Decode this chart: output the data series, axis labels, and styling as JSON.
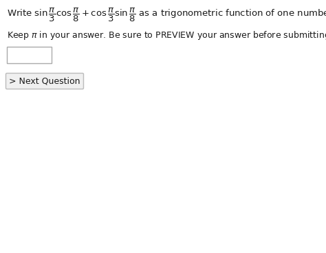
{
  "background_color": "#ffffff",
  "text_color": "#1a1a1a",
  "button_bg": "#f0f0f0",
  "button_border": "#bbbbbb",
  "input_box_color": "#ffffff",
  "input_box_border": "#aaaaaa",
  "line1_math": "Write $\\sin\\dfrac{\\pi}{3}\\cos\\dfrac{\\pi}{8} + \\cos\\dfrac{\\pi}{3}\\sin\\dfrac{\\pi}{8}$ as a trigonometric function of one number.",
  "line2_text": "Keep $\\pi$ in your answer. Be sure to PREVIEW your answer before submitting!",
  "button_label": "> Next Question",
  "fontsize_line1": 9.5,
  "fontsize_line2": 9.0,
  "fontsize_button": 9.0,
  "fig_width": 4.74,
  "fig_height": 3.68,
  "dpi": 100
}
